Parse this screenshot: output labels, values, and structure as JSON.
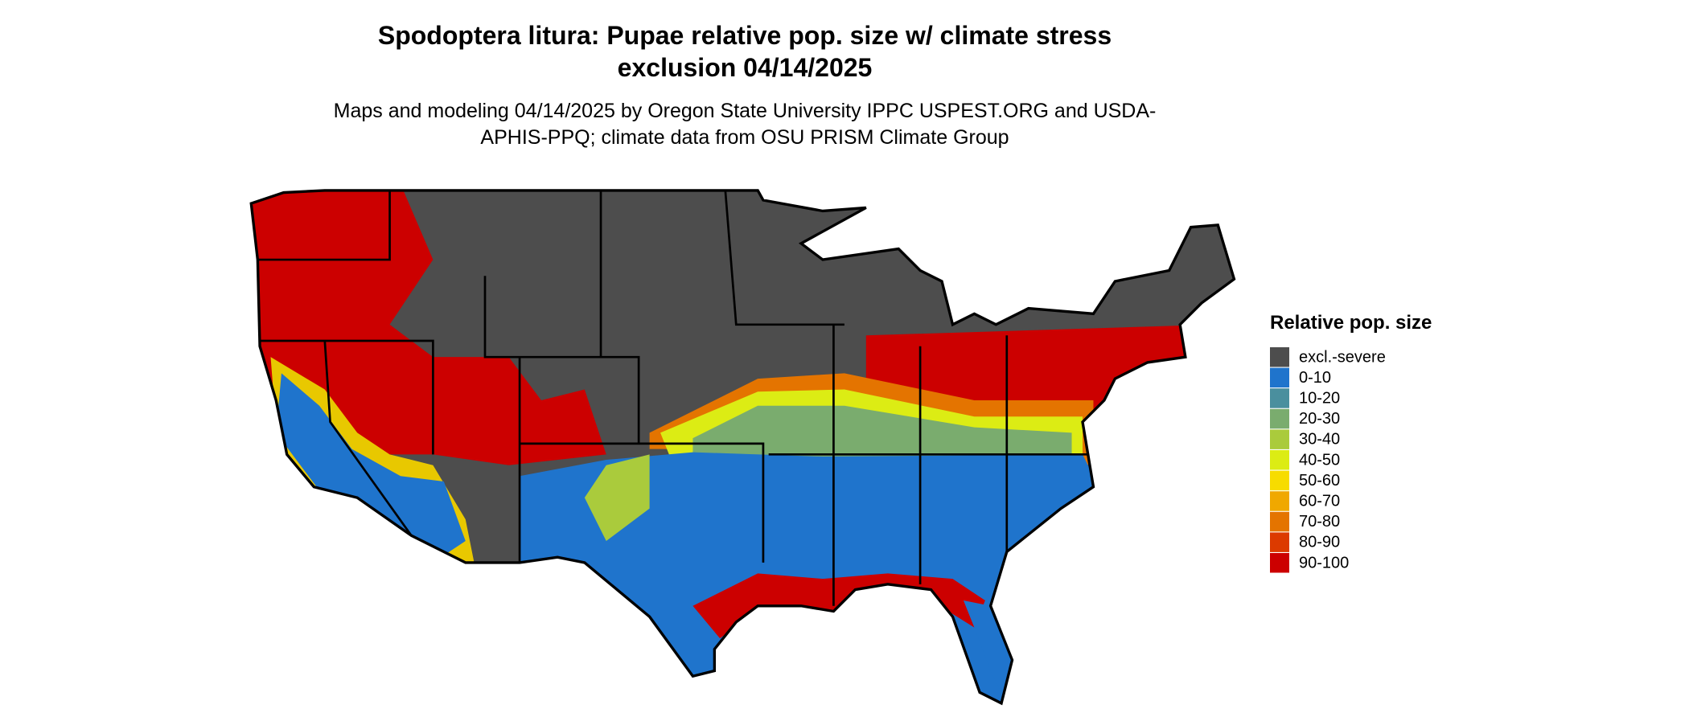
{
  "title": "Spodoptera litura: Pupae relative pop. size w/ climate stress exclusion 04/14/2025",
  "subtitle": "Maps and modeling 04/14/2025 by Oregon State University IPPC USPEST.ORG and USDA-APHIS-PPQ; climate data from OSU PRISM Climate Group",
  "legend": {
    "title": "Relative pop. size",
    "items": [
      {
        "label": "excl.-severe",
        "color": "#4d4d4d"
      },
      {
        "label": "0-10",
        "color": "#1f74cc"
      },
      {
        "label": "10-20",
        "color": "#4a8f9e"
      },
      {
        "label": "20-30",
        "color": "#7aac6e"
      },
      {
        "label": "30-40",
        "color": "#aacb3c"
      },
      {
        "label": "40-50",
        "color": "#dcec14"
      },
      {
        "label": "50-60",
        "color": "#f7dc00"
      },
      {
        "label": "60-70",
        "color": "#f0a800"
      },
      {
        "label": "70-80",
        "color": "#e47400"
      },
      {
        "label": "80-90",
        "color": "#dc3a00"
      },
      {
        "label": "90-100",
        "color": "#cc0000"
      }
    ]
  }
}
